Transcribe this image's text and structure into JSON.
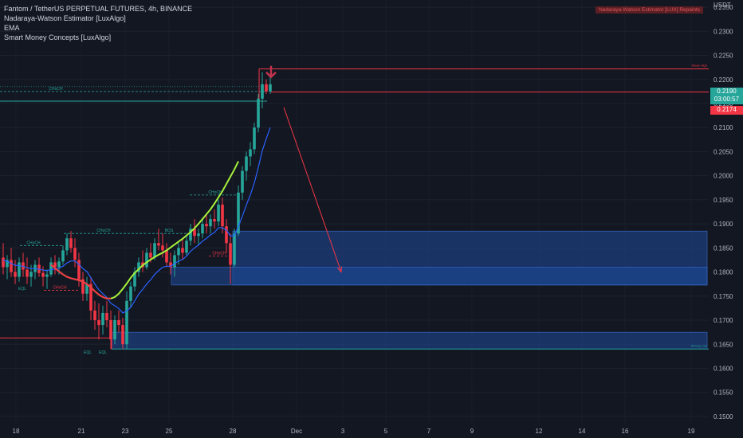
{
  "header": {
    "symbol_line": "Fantom / TetherUS PERPETUAL FUTURES, 4h, BINANCE",
    "indicators": [
      "Nadaraya-Watson Estimator [LuxAlgo]",
      "EMA",
      "Smart Money Concepts [LuxAlgo]"
    ],
    "repaint_badge": "Nadaraya-Watson Estimator [LUX] Repaints"
  },
  "price_tags": {
    "current_price": "0.2190",
    "countdown": "03:00:57",
    "secondary_price": "0.2174",
    "current_color": "#26a69a",
    "secondary_color": "#f23645"
  },
  "colors": {
    "background": "#131722",
    "bull": "#26a69a",
    "bear": "#f23645",
    "ema": "#2962ff",
    "nadaraya": "#a6f23c",
    "zone": "#1e4a9a",
    "structure_bull": "#26a69a",
    "structure_bear": "#f23645"
  },
  "chart_data": {
    "type": "candlestick",
    "y_axis": {
      "unit": "USDT",
      "min": 0.1485,
      "max": 0.2365,
      "ticks": [
        "0.1500",
        "0.1550",
        "0.1600",
        "0.1650",
        "0.1700",
        "0.1750",
        "0.1800",
        "0.1850",
        "0.1900",
        "0.1950",
        "0.2000",
        "0.2050",
        "0.2100",
        "0.2150",
        "0.2200",
        "0.2250",
        "0.2300",
        "0.2350"
      ]
    },
    "x_axis": {
      "labels": [
        "18",
        "21",
        "23",
        "25",
        "28",
        "Dec",
        "3",
        "5",
        "7",
        "9",
        "12",
        "14",
        "16",
        "19"
      ]
    },
    "candles": [
      [
        0.183,
        0.186,
        0.1795,
        0.181
      ],
      [
        0.181,
        0.1835,
        0.1785,
        0.1825
      ],
      [
        0.1825,
        0.185,
        0.179,
        0.18
      ],
      [
        0.18,
        0.1825,
        0.1775,
        0.179
      ],
      [
        0.179,
        0.183,
        0.178,
        0.182
      ],
      [
        0.182,
        0.184,
        0.179,
        0.1805
      ],
      [
        0.1805,
        0.183,
        0.1775,
        0.179
      ],
      [
        0.179,
        0.1815,
        0.177,
        0.18
      ],
      [
        0.18,
        0.1825,
        0.1785,
        0.1815
      ],
      [
        0.1815,
        0.183,
        0.179,
        0.1798
      ],
      [
        0.1798,
        0.1812,
        0.177,
        0.179
      ],
      [
        0.179,
        0.1805,
        0.1765,
        0.1795
      ],
      [
        0.1795,
        0.183,
        0.179,
        0.182
      ],
      [
        0.182,
        0.1835,
        0.1795,
        0.181
      ],
      [
        0.181,
        0.183,
        0.1795,
        0.1822
      ],
      [
        0.1822,
        0.1855,
        0.1815,
        0.1845
      ],
      [
        0.1845,
        0.188,
        0.1835,
        0.187
      ],
      [
        0.187,
        0.1885,
        0.184,
        0.185
      ],
      [
        0.185,
        0.187,
        0.181,
        0.1825
      ],
      [
        0.1825,
        0.184,
        0.177,
        0.1785
      ],
      [
        0.1785,
        0.18,
        0.174,
        0.1755
      ],
      [
        0.1755,
        0.179,
        0.174,
        0.1775
      ],
      [
        0.1775,
        0.179,
        0.17,
        0.172
      ],
      [
        0.172,
        0.174,
        0.168,
        0.17
      ],
      [
        0.17,
        0.1735,
        0.166,
        0.169
      ],
      [
        0.169,
        0.173,
        0.167,
        0.1715
      ],
      [
        0.1715,
        0.174,
        0.1685,
        0.17
      ],
      [
        0.17,
        0.172,
        0.164,
        0.166
      ],
      [
        0.166,
        0.171,
        0.165,
        0.17
      ],
      [
        0.17,
        0.172,
        0.1675,
        0.169
      ],
      [
        0.169,
        0.1705,
        0.164,
        0.165
      ],
      [
        0.165,
        0.176,
        0.164,
        0.174
      ],
      [
        0.174,
        0.178,
        0.1725,
        0.177
      ],
      [
        0.177,
        0.181,
        0.176,
        0.18
      ],
      [
        0.18,
        0.183,
        0.179,
        0.182
      ],
      [
        0.182,
        0.1845,
        0.18,
        0.181
      ],
      [
        0.181,
        0.185,
        0.1805,
        0.184
      ],
      [
        0.184,
        0.186,
        0.182,
        0.183
      ],
      [
        0.183,
        0.187,
        0.1825,
        0.186
      ],
      [
        0.186,
        0.189,
        0.1845,
        0.1855
      ],
      [
        0.1855,
        0.188,
        0.183,
        0.1845
      ],
      [
        0.1845,
        0.186,
        0.181,
        0.182
      ],
      [
        0.182,
        0.184,
        0.1795,
        0.181
      ],
      [
        0.181,
        0.1845,
        0.179,
        0.1835
      ],
      [
        0.1835,
        0.186,
        0.1815,
        0.185
      ],
      [
        0.185,
        0.187,
        0.1825,
        0.184
      ],
      [
        0.184,
        0.1875,
        0.1835,
        0.1865
      ],
      [
        0.1865,
        0.19,
        0.1855,
        0.189
      ],
      [
        0.189,
        0.191,
        0.186,
        0.1875
      ],
      [
        0.1875,
        0.189,
        0.1855,
        0.188
      ],
      [
        0.188,
        0.191,
        0.187,
        0.19
      ],
      [
        0.19,
        0.192,
        0.188,
        0.1895
      ],
      [
        0.1895,
        0.192,
        0.188,
        0.191
      ],
      [
        0.191,
        0.193,
        0.189,
        0.1905
      ],
      [
        0.1905,
        0.195,
        0.1895,
        0.194
      ],
      [
        0.194,
        0.1955,
        0.188,
        0.1895
      ],
      [
        0.1895,
        0.191,
        0.184,
        0.186
      ],
      [
        0.186,
        0.188,
        0.1775,
        0.1815
      ],
      [
        0.1815,
        0.189,
        0.181,
        0.188
      ],
      [
        0.188,
        0.198,
        0.1875,
        0.1965
      ],
      [
        0.1965,
        0.202,
        0.195,
        0.201
      ],
      [
        0.201,
        0.205,
        0.199,
        0.204
      ],
      [
        0.204,
        0.207,
        0.202,
        0.2055
      ],
      [
        0.2055,
        0.211,
        0.2045,
        0.21
      ],
      [
        0.21,
        0.217,
        0.209,
        0.216
      ],
      [
        0.216,
        0.2215,
        0.214,
        0.219
      ],
      [
        0.219,
        0.22,
        0.217,
        0.2175
      ],
      [
        0.2175,
        0.2205,
        0.217,
        0.219
      ]
    ],
    "ema": [
      0.1825,
      0.1822,
      0.1818,
      0.1814,
      0.1813,
      0.1812,
      0.1809,
      0.1807,
      0.1807,
      0.1806,
      0.1804,
      0.1803,
      0.1805,
      0.1806,
      0.1808,
      0.1812,
      0.1819,
      0.1823,
      0.1823,
      0.1816,
      0.1807,
      0.1801,
      0.1788,
      0.1775,
      0.1763,
      0.1755,
      0.1747,
      0.1735,
      0.173,
      0.1724,
      0.1715,
      0.1719,
      0.1727,
      0.174,
      0.1754,
      0.1764,
      0.1775,
      0.1784,
      0.1795,
      0.1803,
      0.181,
      0.1812,
      0.1812,
      0.1817,
      0.1823,
      0.1826,
      0.1833,
      0.1843,
      0.185,
      0.1856,
      0.1864,
      0.187,
      0.1877,
      0.1882,
      0.1892,
      0.1892,
      0.1887,
      0.1875,
      0.1876,
      0.1894,
      0.1916,
      0.1939,
      0.196,
      0.1985,
      0.2017,
      0.2052,
      0.2077,
      0.21
    ],
    "nadaraya": {
      "start_index": 12,
      "values": [
        0.1815,
        0.1808,
        0.1801,
        0.1795,
        0.179,
        0.1787,
        0.1785,
        0.1783,
        0.178,
        0.1775,
        0.1768,
        0.176,
        0.1753,
        0.1748,
        0.1745,
        0.1745,
        0.1748,
        0.1755,
        0.1765,
        0.1776,
        0.1788,
        0.1798,
        0.1806,
        0.1814,
        0.182,
        0.1826,
        0.1831,
        0.1836,
        0.184,
        0.1845,
        0.1851,
        0.1857,
        0.1863,
        0.1869,
        0.1876,
        0.1883,
        0.1891,
        0.19,
        0.191,
        0.192,
        0.193,
        0.1942,
        0.1955,
        0.1968,
        0.1983,
        0.1998,
        0.2013,
        0.203
      ]
    },
    "zones": [
      {
        "top": 0.1885,
        "bottom": 0.1773,
        "from": 292,
        "to": 887
      },
      {
        "top": 0.181,
        "bottom": 0.1773,
        "from": 215,
        "to": 887
      },
      {
        "top": 0.1675,
        "bottom": 0.164,
        "from": 140,
        "to": 887
      }
    ],
    "levels": [
      {
        "price": 0.2222,
        "from": 325,
        "to": 889,
        "color": "#f23645",
        "label": "Weak High"
      },
      {
        "price": 0.2174,
        "from": 340,
        "to": 889,
        "color": "#f23645",
        "label": ""
      },
      {
        "price": 0.2155,
        "from": 0,
        "to": 335,
        "color": "#26a69a",
        "label": ""
      },
      {
        "price": 0.1663,
        "from": 0,
        "to": 140,
        "color": "#f23645",
        "label": ""
      },
      {
        "price": 0.164,
        "from": 140,
        "to": 889,
        "color": "#26a69a",
        "label": "Strong Low"
      }
    ],
    "structure_labels": [
      {
        "text": "CHoCH",
        "price": 0.2175,
        "x": 70,
        "color": "#26a69a",
        "line_from": 0,
        "line_to": 335
      },
      {
        "text": "CHoCH",
        "price": 0.188,
        "x": 130,
        "color": "#26a69a",
        "line_from": 80,
        "line_to": 183
      },
      {
        "text": "CHoCH",
        "price": 0.1855,
        "x": 42,
        "color": "#26a69a",
        "line_from": 25,
        "line_to": 78
      },
      {
        "text": "CHoCH",
        "price": 0.196,
        "x": 270,
        "color": "#26a69a",
        "line_from": 238,
        "line_to": 298
      },
      {
        "text": "BOS",
        "price": 0.188,
        "x": 212,
        "color": "#26a69a",
        "line_from": 186,
        "line_to": 238
      },
      {
        "text": "CHoCH",
        "price": 0.1762,
        "x": 75,
        "color": "#f23645",
        "line_from": 55,
        "line_to": 98
      },
      {
        "text": "CHoCH",
        "price": 0.1833,
        "x": 275,
        "color": "#f23645",
        "line_from": 262,
        "line_to": 292
      },
      {
        "text": "EQL",
        "price": 0.176,
        "x": 28,
        "color": "#26a69a",
        "line_from": 0,
        "line_to": 0
      },
      {
        "text": "EQL",
        "price": 0.1627,
        "x": 110,
        "color": "#26a69a",
        "line_from": 0,
        "line_to": 0
      },
      {
        "text": "EQL",
        "price": 0.1627,
        "x": 129,
        "color": "#26a69a",
        "line_from": 0,
        "line_to": 0
      }
    ],
    "projection_arrow": {
      "from": {
        "x": 356,
        "price": 0.2142
      },
      "to": {
        "x": 428,
        "price": 0.18
      },
      "color": "#f23645"
    },
    "down_marker": {
      "x": 340,
      "price": 0.2205
    }
  }
}
